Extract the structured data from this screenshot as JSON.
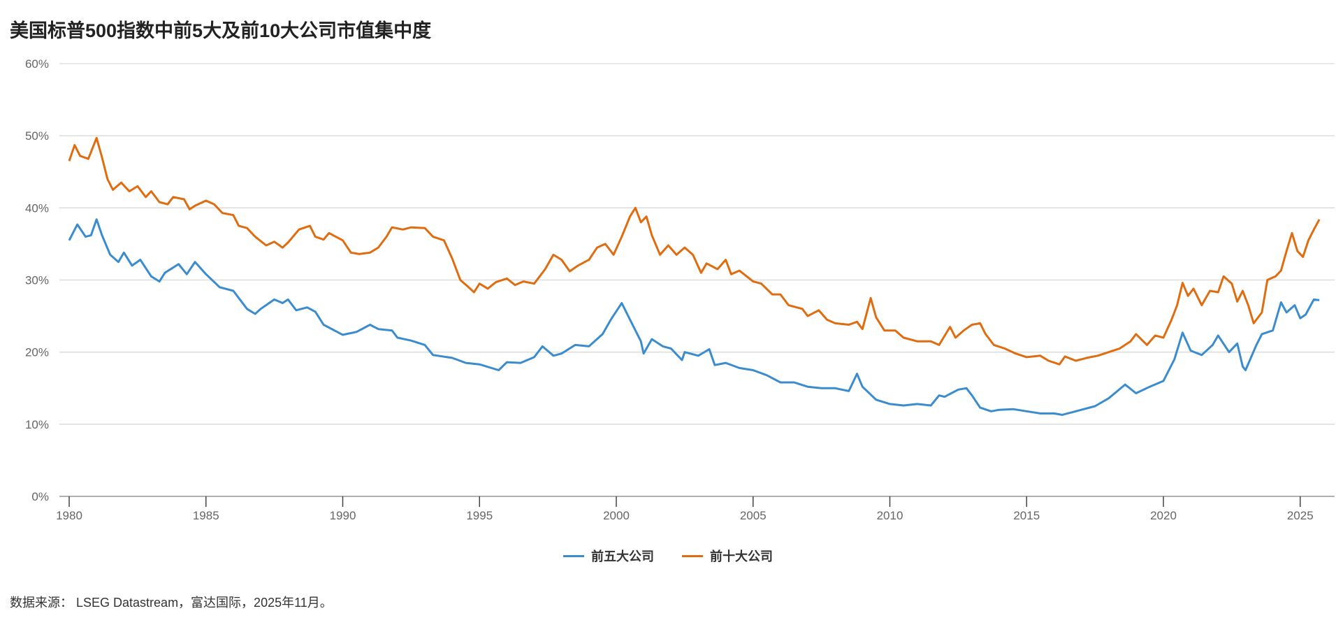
{
  "chart_data": {
    "type": "line",
    "title": "美国标普500指数中前5大及前10大公司市值集中度",
    "xlabel": "",
    "ylabel": "",
    "xlim": [
      1979.9,
      2026.3
    ],
    "ylim": [
      0,
      60
    ],
    "x_ticks": [
      "1980",
      "1985",
      "1990",
      "1995",
      "2000",
      "2005",
      "2010",
      "2015",
      "2020",
      "2025"
    ],
    "y_ticks": [
      "0%",
      "10%",
      "20%",
      "30%",
      "40%",
      "50%",
      "60%"
    ],
    "grid": true,
    "legend_position": "bottom-center",
    "series": [
      {
        "name": "前五大公司",
        "color": "#3a8ccf",
        "points": [
          [
            1980.0,
            35.5
          ],
          [
            1980.3,
            37.7
          ],
          [
            1980.6,
            36
          ],
          [
            1980.8,
            36.2
          ],
          [
            1981.0,
            38.4
          ],
          [
            1981.2,
            36.2
          ],
          [
            1981.5,
            33.5
          ],
          [
            1981.8,
            32.5
          ],
          [
            1982.0,
            33.8
          ],
          [
            1982.3,
            32
          ],
          [
            1982.6,
            32.8
          ],
          [
            1983.0,
            30.5
          ],
          [
            1983.3,
            29.8
          ],
          [
            1983.5,
            31
          ],
          [
            1984.0,
            32.2
          ],
          [
            1984.3,
            30.8
          ],
          [
            1984.6,
            32.5
          ],
          [
            1985.0,
            30.8
          ],
          [
            1985.5,
            29.0
          ],
          [
            1986.0,
            28.5
          ],
          [
            1986.5,
            26
          ],
          [
            1986.8,
            25.3
          ],
          [
            1987.0,
            26
          ],
          [
            1987.5,
            27.3
          ],
          [
            1987.8,
            26.8
          ],
          [
            1988.0,
            27.3
          ],
          [
            1988.3,
            25.8
          ],
          [
            1988.7,
            26.2
          ],
          [
            1989.0,
            25.6
          ],
          [
            1989.3,
            23.8
          ],
          [
            1989.8,
            22.8
          ],
          [
            1990.0,
            22.4
          ],
          [
            1990.5,
            22.8
          ],
          [
            1991.0,
            23.8
          ],
          [
            1991.3,
            23.2
          ],
          [
            1991.8,
            23.0
          ],
          [
            1992.0,
            22.0
          ],
          [
            1992.5,
            21.6
          ],
          [
            1993.0,
            21.0
          ],
          [
            1993.3,
            19.6
          ],
          [
            1994.0,
            19.2
          ],
          [
            1994.5,
            18.5
          ],
          [
            1995.0,
            18.3
          ],
          [
            1995.7,
            17.5
          ],
          [
            1996.0,
            18.6
          ],
          [
            1996.5,
            18.5
          ],
          [
            1997.0,
            19.3
          ],
          [
            1997.3,
            20.8
          ],
          [
            1997.7,
            19.5
          ],
          [
            1998.0,
            19.8
          ],
          [
            1998.5,
            21.0
          ],
          [
            1999.0,
            20.8
          ],
          [
            1999.5,
            22.5
          ],
          [
            1999.8,
            24.5
          ],
          [
            2000.2,
            26.8
          ],
          [
            2000.5,
            24.5
          ],
          [
            2000.9,
            21.5
          ],
          [
            2001.0,
            19.8
          ],
          [
            2001.3,
            21.8
          ],
          [
            2001.7,
            20.8
          ],
          [
            2002.0,
            20.5
          ],
          [
            2002.4,
            18.9
          ],
          [
            2002.5,
            20.0
          ],
          [
            2003.0,
            19.5
          ],
          [
            2003.4,
            20.4
          ],
          [
            2003.6,
            18.2
          ],
          [
            2004.0,
            18.5
          ],
          [
            2004.5,
            17.8
          ],
          [
            2005.0,
            17.5
          ],
          [
            2005.5,
            16.8
          ],
          [
            2006.0,
            15.8
          ],
          [
            2006.5,
            15.8
          ],
          [
            2007.0,
            15.2
          ],
          [
            2007.5,
            15.0
          ],
          [
            2008.0,
            15.0
          ],
          [
            2008.5,
            14.6
          ],
          [
            2008.8,
            17.0
          ],
          [
            2009.0,
            15.2
          ],
          [
            2009.5,
            13.4
          ],
          [
            2010.0,
            12.8
          ],
          [
            2010.5,
            12.6
          ],
          [
            2011.0,
            12.8
          ],
          [
            2011.5,
            12.6
          ],
          [
            2011.8,
            14.0
          ],
          [
            2012.0,
            13.8
          ],
          [
            2012.5,
            14.8
          ],
          [
            2012.8,
            15.0
          ],
          [
            2013.0,
            14.0
          ],
          [
            2013.3,
            12.3
          ],
          [
            2013.7,
            11.8
          ],
          [
            2014.0,
            12.0
          ],
          [
            2014.5,
            12.1
          ],
          [
            2015.0,
            11.8
          ],
          [
            2015.5,
            11.5
          ],
          [
            2016.0,
            11.5
          ],
          [
            2016.3,
            11.3
          ],
          [
            2016.8,
            11.8
          ],
          [
            2017.0,
            12.0
          ],
          [
            2017.5,
            12.5
          ],
          [
            2018.0,
            13.6
          ],
          [
            2018.6,
            15.5
          ],
          [
            2019.0,
            14.3
          ],
          [
            2019.5,
            15.2
          ],
          [
            2020.0,
            16.0
          ],
          [
            2020.4,
            19.0
          ],
          [
            2020.7,
            22.7
          ],
          [
            2021.0,
            20.2
          ],
          [
            2021.4,
            19.6
          ],
          [
            2021.8,
            21.0
          ],
          [
            2022.0,
            22.3
          ],
          [
            2022.4,
            20.0
          ],
          [
            2022.7,
            21.2
          ],
          [
            2022.9,
            18.0
          ],
          [
            2023.0,
            17.5
          ],
          [
            2023.4,
            21.0
          ],
          [
            2023.6,
            22.5
          ],
          [
            2024.0,
            23.0
          ],
          [
            2024.3,
            26.9
          ],
          [
            2024.5,
            25.5
          ],
          [
            2024.8,
            26.5
          ],
          [
            2025.0,
            24.7
          ],
          [
            2025.2,
            25.2
          ],
          [
            2025.5,
            27.3
          ],
          [
            2025.7,
            27.2
          ]
        ]
      },
      {
        "name": "前十大公司",
        "color": "#e06c10",
        "points": [
          [
            1980.0,
            46.5
          ],
          [
            1980.2,
            48.7
          ],
          [
            1980.4,
            47.2
          ],
          [
            1980.7,
            46.8
          ],
          [
            1981.0,
            49.7
          ],
          [
            1981.2,
            47
          ],
          [
            1981.4,
            44
          ],
          [
            1981.6,
            42.5
          ],
          [
            1981.9,
            43.5
          ],
          [
            1982.2,
            42.3
          ],
          [
            1982.5,
            43.0
          ],
          [
            1982.8,
            41.5
          ],
          [
            1983.0,
            42.3
          ],
          [
            1983.3,
            40.8
          ],
          [
            1983.6,
            40.5
          ],
          [
            1983.8,
            41.5
          ],
          [
            1984.2,
            41.2
          ],
          [
            1984.4,
            39.8
          ],
          [
            1984.6,
            40.3
          ],
          [
            1985.0,
            41
          ],
          [
            1985.3,
            40.5
          ],
          [
            1985.6,
            39.3
          ],
          [
            1986.0,
            39
          ],
          [
            1986.2,
            37.5
          ],
          [
            1986.5,
            37.2
          ],
          [
            1986.8,
            36.0
          ],
          [
            1987.2,
            34.8
          ],
          [
            1987.5,
            35.3
          ],
          [
            1987.8,
            34.5
          ],
          [
            1988.0,
            35.2
          ],
          [
            1988.4,
            37
          ],
          [
            1988.8,
            37.5
          ],
          [
            1989.0,
            36
          ],
          [
            1989.3,
            35.6
          ],
          [
            1989.5,
            36.5
          ],
          [
            1990.0,
            35.5
          ],
          [
            1990.3,
            33.8
          ],
          [
            1990.6,
            33.6
          ],
          [
            1991.0,
            33.8
          ],
          [
            1991.3,
            34.5
          ],
          [
            1991.6,
            36
          ],
          [
            1991.8,
            37.3
          ],
          [
            1992.2,
            37.0
          ],
          [
            1992.5,
            37.3
          ],
          [
            1993.0,
            37.2
          ],
          [
            1993.3,
            36
          ],
          [
            1993.7,
            35.5
          ],
          [
            1994.0,
            33
          ],
          [
            1994.3,
            30
          ],
          [
            1994.6,
            29
          ],
          [
            1994.8,
            28.3
          ],
          [
            1995.0,
            29.5
          ],
          [
            1995.3,
            28.8
          ],
          [
            1995.6,
            29.7
          ],
          [
            1996.0,
            30.2
          ],
          [
            1996.3,
            29.3
          ],
          [
            1996.6,
            29.8
          ],
          [
            1997.0,
            29.5
          ],
          [
            1997.4,
            31.5
          ],
          [
            1997.7,
            33.5
          ],
          [
            1998.0,
            32.8
          ],
          [
            1998.3,
            31.2
          ],
          [
            1998.6,
            32
          ],
          [
            1999.0,
            32.8
          ],
          [
            1999.3,
            34.5
          ],
          [
            1999.6,
            35.0
          ],
          [
            1999.9,
            33.5
          ],
          [
            2000.2,
            36
          ],
          [
            2000.5,
            38.8
          ],
          [
            2000.7,
            40
          ],
          [
            2000.9,
            38
          ],
          [
            2001.1,
            38.8
          ],
          [
            2001.3,
            36.2
          ],
          [
            2001.6,
            33.5
          ],
          [
            2001.9,
            34.8
          ],
          [
            2002.2,
            33.5
          ],
          [
            2002.5,
            34.5
          ],
          [
            2002.8,
            33.5
          ],
          [
            2003.1,
            31
          ],
          [
            2003.3,
            32.3
          ],
          [
            2003.7,
            31.5
          ],
          [
            2004.0,
            32.8
          ],
          [
            2004.2,
            30.8
          ],
          [
            2004.5,
            31.3
          ],
          [
            2005.0,
            29.8
          ],
          [
            2005.3,
            29.5
          ],
          [
            2005.7,
            28
          ],
          [
            2006.0,
            28
          ],
          [
            2006.3,
            26.5
          ],
          [
            2006.8,
            26
          ],
          [
            2007.0,
            25
          ],
          [
            2007.4,
            25.8
          ],
          [
            2007.7,
            24.5
          ],
          [
            2008.0,
            24
          ],
          [
            2008.5,
            23.8
          ],
          [
            2008.8,
            24.2
          ],
          [
            2009.0,
            23.2
          ],
          [
            2009.3,
            27.5
          ],
          [
            2009.5,
            24.8
          ],
          [
            2009.8,
            23
          ],
          [
            2010.2,
            23
          ],
          [
            2010.5,
            22.0
          ],
          [
            2011.0,
            21.5
          ],
          [
            2011.5,
            21.5
          ],
          [
            2011.8,
            21
          ],
          [
            2012.2,
            23.5
          ],
          [
            2012.4,
            22
          ],
          [
            2012.7,
            23
          ],
          [
            2013.0,
            23.8
          ],
          [
            2013.3,
            24
          ],
          [
            2013.5,
            22.5
          ],
          [
            2013.8,
            21
          ],
          [
            2014.2,
            20.5
          ],
          [
            2014.6,
            19.8
          ],
          [
            2015.0,
            19.3
          ],
          [
            2015.5,
            19.5
          ],
          [
            2015.8,
            18.8
          ],
          [
            2016.2,
            18.3
          ],
          [
            2016.4,
            19.4
          ],
          [
            2016.8,
            18.8
          ],
          [
            2017.2,
            19.2
          ],
          [
            2017.6,
            19.5
          ],
          [
            2018.0,
            20
          ],
          [
            2018.4,
            20.5
          ],
          [
            2018.8,
            21.5
          ],
          [
            2019.0,
            22.5
          ],
          [
            2019.4,
            21
          ],
          [
            2019.7,
            22.3
          ],
          [
            2020.0,
            22
          ],
          [
            2020.3,
            24.5
          ],
          [
            2020.5,
            26.5
          ],
          [
            2020.7,
            29.6
          ],
          [
            2020.9,
            27.8
          ],
          [
            2021.1,
            28.8
          ],
          [
            2021.4,
            26.5
          ],
          [
            2021.7,
            28.5
          ],
          [
            2022.0,
            28.3
          ],
          [
            2022.2,
            30.5
          ],
          [
            2022.5,
            29.5
          ],
          [
            2022.7,
            27
          ],
          [
            2022.9,
            28.5
          ],
          [
            2023.1,
            26.5
          ],
          [
            2023.3,
            24
          ],
          [
            2023.6,
            25.5
          ],
          [
            2023.8,
            30
          ],
          [
            2024.1,
            30.5
          ],
          [
            2024.3,
            31.3
          ],
          [
            2024.5,
            34
          ],
          [
            2024.7,
            36.5
          ],
          [
            2024.9,
            34
          ],
          [
            2025.1,
            33.2
          ],
          [
            2025.3,
            35.5
          ],
          [
            2025.5,
            37
          ],
          [
            2025.7,
            38.4
          ]
        ]
      }
    ]
  },
  "source": "数据来源： LSEG Datastream，富达国际，2025年11月。"
}
